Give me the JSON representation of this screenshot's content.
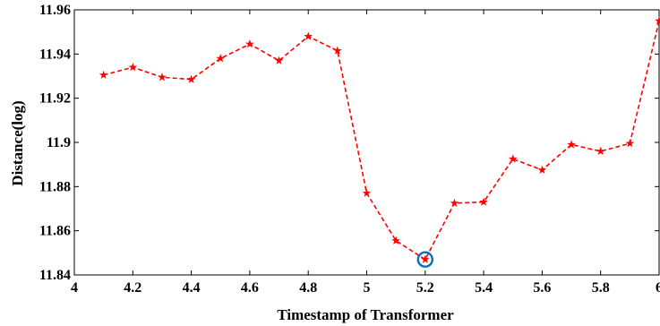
{
  "chart_data": {
    "type": "line",
    "title": "",
    "xlabel": "Timestamp of Transformer",
    "ylabel": "Distance(log)",
    "xlim": [
      4,
      6
    ],
    "ylim": [
      11.84,
      11.96
    ],
    "x_ticks": [
      "4",
      "4.2",
      "4.4",
      "4.6",
      "4.8",
      "5",
      "5.2",
      "5.4",
      "5.6",
      "5.8",
      "6"
    ],
    "y_ticks": [
      "11.84",
      "11.86",
      "11.88",
      "11.9",
      "11.92",
      "11.94",
      "11.96"
    ],
    "grid": false,
    "series": [
      {
        "color": "#ff0000",
        "line_style": "dashed",
        "marker": "star",
        "x": [
          4.1,
          4.2,
          4.3,
          4.4,
          4.5,
          4.6,
          4.7,
          4.8,
          4.9,
          5.0,
          5.1,
          5.2,
          5.3,
          5.4,
          5.5,
          5.6,
          5.7,
          5.8,
          5.9,
          6.0
        ],
        "y": [
          11.9305,
          11.934,
          11.9295,
          11.9285,
          11.938,
          11.9445,
          11.937,
          11.948,
          11.9415,
          11.877,
          11.8555,
          11.847,
          11.8725,
          11.873,
          11.8925,
          11.8875,
          11.899,
          11.896,
          11.8995,
          11.955
        ]
      }
    ],
    "highlight": {
      "x": 5.2,
      "y": 11.847,
      "marker": "circle",
      "color": "#0072bd"
    }
  }
}
